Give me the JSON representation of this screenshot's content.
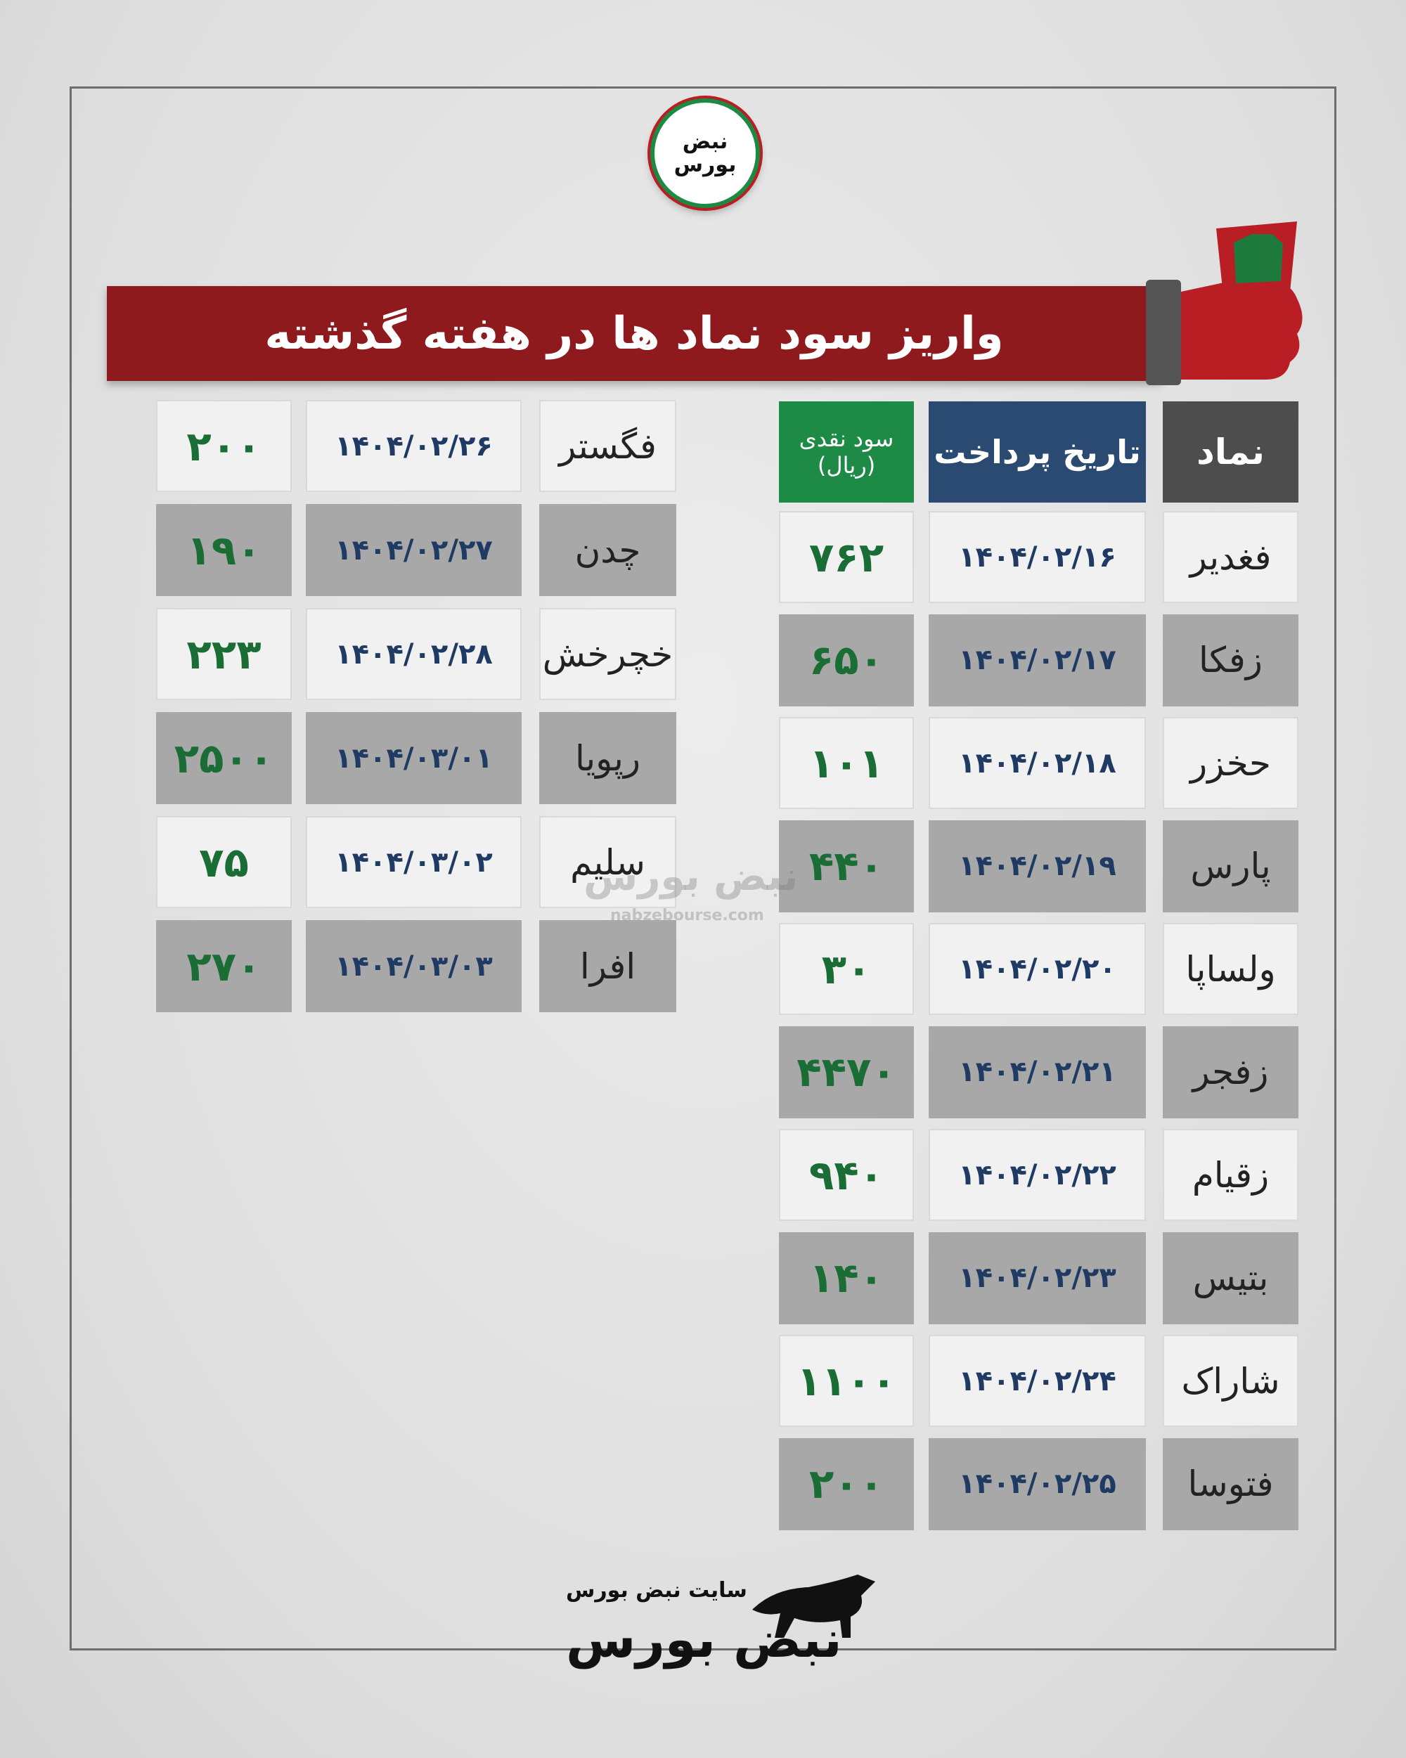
{
  "logo": {
    "lines": [
      "نبض",
      "بورس"
    ]
  },
  "title": "واریز سود نماد ها در هفته گذشته",
  "table": {
    "headers": {
      "symbol": "نماد",
      "date": "تاریخ پرداخت",
      "dividend": "سود نقدی",
      "unit": "(ریال)"
    },
    "right_rows": [
      [
        "فغدیر",
        "۱۴۰۴/۰۲/۱۶",
        "۷۶۲"
      ],
      [
        "زفکا",
        "۱۴۰۴/۰۲/۱۷",
        "۶۵۰"
      ],
      [
        "حخزر",
        "۱۴۰۴/۰۲/۱۸",
        "۱۰۱"
      ],
      [
        "پارس",
        "۱۴۰۴/۰۲/۱۹",
        "۴۴۰"
      ],
      [
        "ولساپا",
        "۱۴۰۴/۰۲/۲۰",
        "۳۰"
      ],
      [
        "زفجر",
        "۱۴۰۴/۰۲/۲۱",
        "۴۴۷۰"
      ],
      [
        "زقیام",
        "۱۴۰۴/۰۲/۲۲",
        "۹۴۰"
      ],
      [
        "بتیس",
        "۱۴۰۴/۰۲/۲۳",
        "۱۴۰"
      ],
      [
        "شاراک",
        "۱۴۰۴/۰۲/۲۴",
        "۱۱۰۰"
      ],
      [
        "فتوسا",
        "۱۴۰۴/۰۲/۲۵",
        "۲۰۰"
      ]
    ],
    "left_rows": [
      [
        "فگستر",
        "۱۴۰۴/۰۲/۲۶",
        "۲۰۰"
      ],
      [
        "چدن",
        "۱۴۰۴/۰۲/۲۷",
        "۱۹۰"
      ],
      [
        "خچرخش",
        "۱۴۰۴/۰۲/۲۸",
        "۲۲۳"
      ],
      [
        "رپویا",
        "۱۴۰۴/۰۳/۰۱",
        "۲۵۰۰"
      ],
      [
        "سلیم",
        "۱۴۰۴/۰۳/۰۲",
        "۷۵"
      ],
      [
        "افرا",
        "۱۴۰۴/۰۳/۰۳",
        "۲۷۰"
      ]
    ]
  },
  "watermark": {
    "text": "نبض بورس",
    "url": "nabzebourse.com"
  },
  "footer": {
    "caption": "سایت نبض بورس",
    "logo_text": "نبض بورس"
  }
}
